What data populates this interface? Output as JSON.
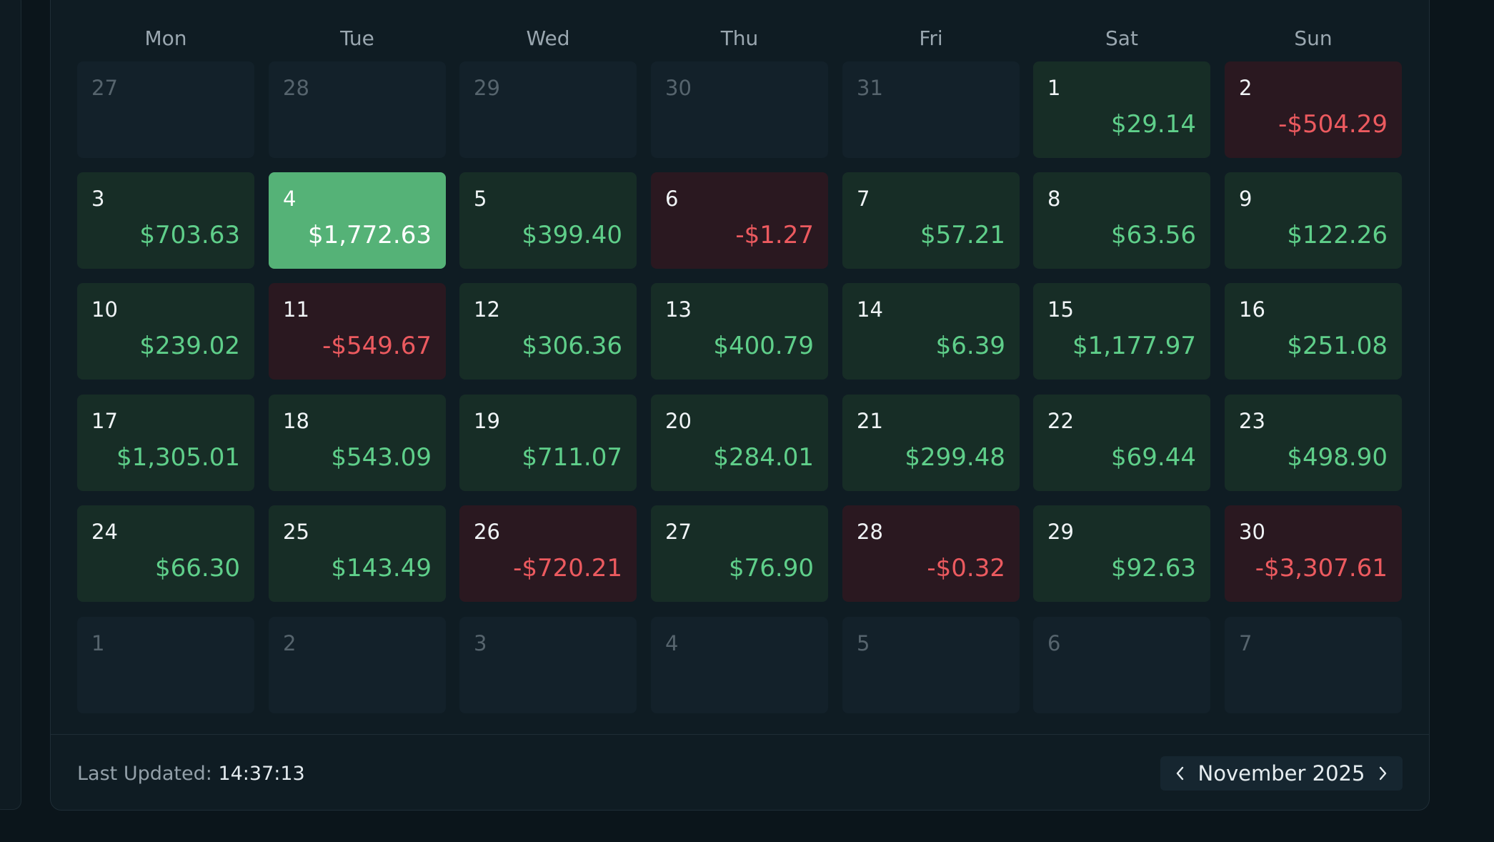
{
  "calendar": {
    "weekdays": [
      "Mon",
      "Tue",
      "Wed",
      "Thu",
      "Fri",
      "Sat",
      "Sun"
    ],
    "weeks": [
      [
        {
          "day": "27",
          "value": "",
          "kind": "empty"
        },
        {
          "day": "28",
          "value": "",
          "kind": "empty"
        },
        {
          "day": "29",
          "value": "",
          "kind": "empty"
        },
        {
          "day": "30",
          "value": "",
          "kind": "empty"
        },
        {
          "day": "31",
          "value": "",
          "kind": "empty"
        },
        {
          "day": "1",
          "value": "$29.14",
          "kind": "pos"
        },
        {
          "day": "2",
          "value": "-$504.29",
          "kind": "neg"
        }
      ],
      [
        {
          "day": "3",
          "value": "$703.63",
          "kind": "pos"
        },
        {
          "day": "4",
          "value": "$1,772.63",
          "kind": "highlight"
        },
        {
          "day": "5",
          "value": "$399.40",
          "kind": "pos"
        },
        {
          "day": "6",
          "value": "-$1.27",
          "kind": "neg"
        },
        {
          "day": "7",
          "value": "$57.21",
          "kind": "pos"
        },
        {
          "day": "8",
          "value": "$63.56",
          "kind": "pos"
        },
        {
          "day": "9",
          "value": "$122.26",
          "kind": "pos"
        }
      ],
      [
        {
          "day": "10",
          "value": "$239.02",
          "kind": "pos"
        },
        {
          "day": "11",
          "value": "-$549.67",
          "kind": "neg"
        },
        {
          "day": "12",
          "value": "$306.36",
          "kind": "pos"
        },
        {
          "day": "13",
          "value": "$400.79",
          "kind": "pos"
        },
        {
          "day": "14",
          "value": "$6.39",
          "kind": "pos"
        },
        {
          "day": "15",
          "value": "$1,177.97",
          "kind": "pos"
        },
        {
          "day": "16",
          "value": "$251.08",
          "kind": "pos"
        }
      ],
      [
        {
          "day": "17",
          "value": "$1,305.01",
          "kind": "pos"
        },
        {
          "day": "18",
          "value": "$543.09",
          "kind": "pos"
        },
        {
          "day": "19",
          "value": "$711.07",
          "kind": "pos"
        },
        {
          "day": "20",
          "value": "$284.01",
          "kind": "pos"
        },
        {
          "day": "21",
          "value": "$299.48",
          "kind": "pos"
        },
        {
          "day": "22",
          "value": "$69.44",
          "kind": "pos"
        },
        {
          "day": "23",
          "value": "$498.90",
          "kind": "pos"
        }
      ],
      [
        {
          "day": "24",
          "value": "$66.30",
          "kind": "pos"
        },
        {
          "day": "25",
          "value": "$143.49",
          "kind": "pos"
        },
        {
          "day": "26",
          "value": "-$720.21",
          "kind": "neg"
        },
        {
          "day": "27",
          "value": "$76.90",
          "kind": "pos"
        },
        {
          "day": "28",
          "value": "-$0.32",
          "kind": "neg"
        },
        {
          "day": "29",
          "value": "$92.63",
          "kind": "pos"
        },
        {
          "day": "30",
          "value": "-$3,307.61",
          "kind": "neg"
        }
      ],
      [
        {
          "day": "1",
          "value": "",
          "kind": "empty"
        },
        {
          "day": "2",
          "value": "",
          "kind": "empty"
        },
        {
          "day": "3",
          "value": "",
          "kind": "empty"
        },
        {
          "day": "4",
          "value": "",
          "kind": "empty"
        },
        {
          "day": "5",
          "value": "",
          "kind": "empty"
        },
        {
          "day": "6",
          "value": "",
          "kind": "empty"
        },
        {
          "day": "7",
          "value": "",
          "kind": "empty"
        }
      ]
    ]
  },
  "footer": {
    "last_updated_label": "Last Updated:",
    "last_updated_time": "14:37:13",
    "month_label": "November 2025",
    "prev_icon": "chevron-left-icon",
    "next_icon": "chevron-right-icon"
  },
  "colors": {
    "positive": "#5fcf8a",
    "negative": "#ec5a5f",
    "highlight": "#55b277"
  }
}
